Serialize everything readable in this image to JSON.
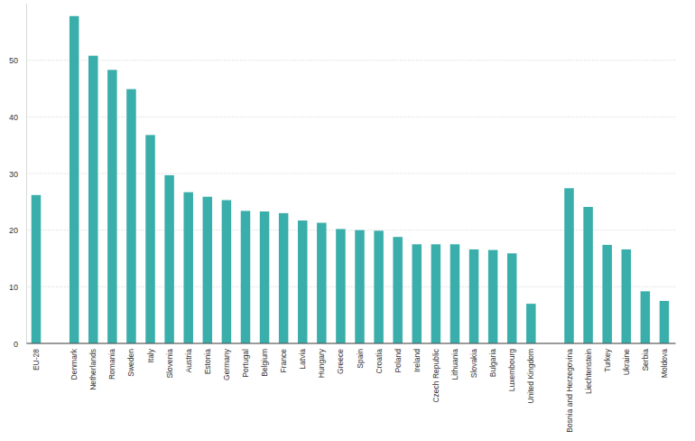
{
  "chart_data": {
    "type": "bar",
    "categories": [
      "EU-28",
      null,
      "Denmark",
      "Netherlands",
      "Romania",
      "Sweden",
      "Italy",
      "Slovenia",
      "Austria",
      "Estonia",
      "Germany",
      "Portugal",
      "Belgium",
      "France",
      "Latvia",
      "Hungary",
      "Greece",
      "Spain",
      "Croatia",
      "Poland",
      "Ireland",
      "Czech Republic",
      "Lithuania",
      "Slovakia",
      "Bulgaria",
      "Luxembourg",
      "United Kingdom",
      null,
      "Bosnia and Herzegovina",
      "Liechtenstein",
      "Turkey",
      "Ukraine",
      "Serbia",
      "Moldova"
    ],
    "values": [
      26.2,
      null,
      57.8,
      50.8,
      48.3,
      44.9,
      36.8,
      29.7,
      26.7,
      25.9,
      25.3,
      23.4,
      23.3,
      23.0,
      21.7,
      21.3,
      20.2,
      20.0,
      19.9,
      18.8,
      17.5,
      17.5,
      17.5,
      16.6,
      16.5,
      15.9,
      7.0,
      null,
      27.4,
      24.1,
      17.4,
      16.6,
      9.2,
      7.5
    ],
    "color": "#3aaeaa",
    "ylim": [
      0,
      60
    ],
    "yticks": [
      0,
      10,
      20,
      30,
      40,
      50
    ],
    "grid": true
  }
}
